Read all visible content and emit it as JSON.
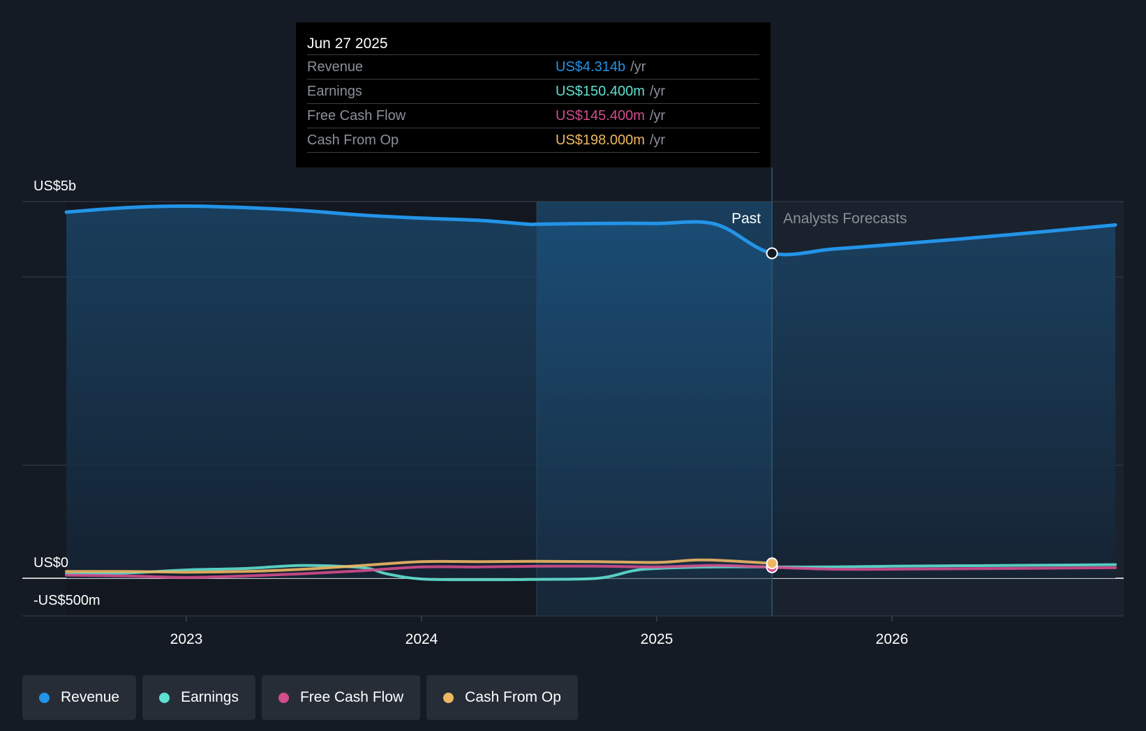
{
  "tooltip": {
    "date": "Jun 27 2025",
    "rows": [
      {
        "label": "Revenue",
        "value": "US$4.314b",
        "unit": "/yr",
        "color": "#2394e8"
      },
      {
        "label": "Earnings",
        "value": "US$150.400m",
        "unit": "/yr",
        "color": "#5fe0d0"
      },
      {
        "label": "Free Cash Flow",
        "value": "US$145.400m",
        "unit": "/yr",
        "color": "#d24d8c"
      },
      {
        "label": "Cash From Op",
        "value": "US$198.000m",
        "unit": "/yr",
        "color": "#f0b763"
      }
    ]
  },
  "legend": [
    {
      "label": "Revenue",
      "color": "#2394e8"
    },
    {
      "label": "Earnings",
      "color": "#5fe0d0"
    },
    {
      "label": "Free Cash Flow",
      "color": "#d24d8c"
    },
    {
      "label": "Cash From Op",
      "color": "#f0b763"
    }
  ],
  "chart_data": {
    "type": "line",
    "title": "",
    "xlabel": "",
    "ylabel": "",
    "unit": "US$ millions",
    "ylim": [
      -500,
      5000
    ],
    "xlim": [
      2022.3,
      2026.95
    ],
    "y_ticks": [
      {
        "value": 5000,
        "label": "US$5b"
      },
      {
        "value": 0,
        "label": "US$0"
      },
      {
        "value": -500,
        "label": "-US$500m"
      }
    ],
    "x_ticks": [
      {
        "value": 2023,
        "label": "2023"
      },
      {
        "value": 2024,
        "label": "2024"
      },
      {
        "value": 2025,
        "label": "2025"
      },
      {
        "value": 2026,
        "label": "2026"
      }
    ],
    "past_label": "Past",
    "forecast_label": "Analysts Forecasts",
    "divider_x": 2025.49,
    "highlight_from": 2024.49,
    "series": [
      {
        "name": "Revenue",
        "color": "#2394e8",
        "x": [
          2022.49,
          2022.75,
          2023.0,
          2023.25,
          2023.5,
          2023.75,
          2024.0,
          2024.25,
          2024.45,
          2024.5,
          2024.75,
          2025.0,
          2025.25,
          2025.49,
          2025.75,
          2026.0,
          2026.5,
          2026.95
        ],
        "y": [
          4860,
          4920,
          4940,
          4920,
          4880,
          4820,
          4780,
          4750,
          4700,
          4700,
          4710,
          4710,
          4700,
          4314,
          4370,
          4430,
          4560,
          4690
        ]
      },
      {
        "name": "Earnings",
        "color": "#5fe0d0",
        "x": [
          2022.49,
          2022.75,
          2023.0,
          2023.25,
          2023.5,
          2023.75,
          2023.85,
          2024.0,
          2024.25,
          2024.5,
          2024.75,
          2024.9,
          2025.0,
          2025.25,
          2025.49,
          2025.75,
          2026.0,
          2026.5,
          2026.95
        ],
        "y": [
          60,
          70,
          110,
          130,
          170,
          140,
          60,
          -10,
          -20,
          -15,
          0,
          100,
          130,
          150,
          150,
          150,
          160,
          170,
          180
        ]
      },
      {
        "name": "Free Cash Flow",
        "color": "#d24d8c",
        "x": [
          2022.49,
          2022.75,
          2023.0,
          2023.25,
          2023.5,
          2023.75,
          2024.0,
          2024.25,
          2024.5,
          2024.75,
          2025.0,
          2025.25,
          2025.49,
          2025.75,
          2026.0,
          2026.5,
          2026.95
        ],
        "y": [
          40,
          30,
          10,
          30,
          60,
          100,
          150,
          150,
          160,
          160,
          150,
          170,
          145.4,
          120,
          120,
          130,
          140
        ]
      },
      {
        "name": "Cash From Op",
        "color": "#f0b763",
        "x": [
          2022.49,
          2022.75,
          2023.0,
          2023.25,
          2023.5,
          2023.75,
          2024.0,
          2024.25,
          2024.5,
          2024.75,
          2025.0,
          2025.15,
          2025.25,
          2025.49
        ],
        "y": [
          90,
          90,
          80,
          90,
          120,
          170,
          220,
          220,
          225,
          220,
          210,
          240,
          240,
          198
        ]
      }
    ]
  }
}
